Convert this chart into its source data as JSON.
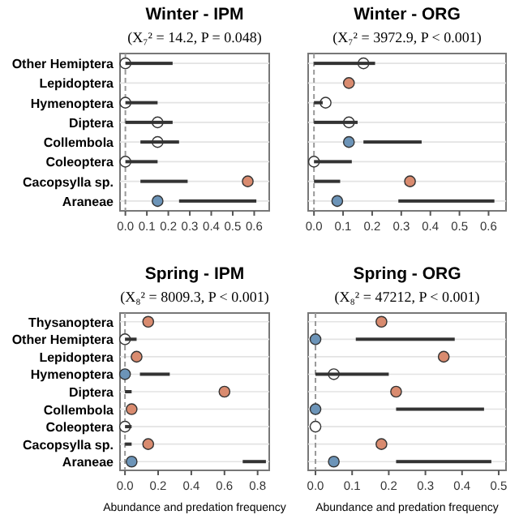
{
  "chart_data": [
    {
      "type": "bar",
      "orientation": "horizontal",
      "title": "Winter - IPM",
      "subtitle": "(X₇² = 14.2, P = 0.048)",
      "categories": [
        "Other Hemiptera",
        "Lepidoptera",
        "Hymenoptera",
        "Diptera",
        "Collembola",
        "Coleoptera",
        "Cacopsylla sp.",
        "Araneae"
      ],
      "xlim": [
        -0.025,
        0.67
      ],
      "xticks": [
        {
          "value": 0,
          "label": "0.0"
        },
        0.1,
        0.2,
        0.3,
        0.4,
        0.5,
        0.6
      ],
      "grid": "y",
      "ref_lines": [
        {
          "axis": "x",
          "value": 0,
          "line_style": "dashed",
          "color": "#999999"
        }
      ],
      "series": [
        {
          "color": "#333333",
          "base": [
            0,
            null,
            0,
            0,
            0.07,
            0,
            0.07,
            0.25
          ],
          "values": [
            0.22,
            null,
            0.15,
            0.22,
            0.18,
            0.15,
            0.22,
            0.36
          ]
        },
        {
          "type": "scatter",
          "marker": "circle",
          "colors": [
            "#ffffff",
            null,
            "#ffffff",
            "#ffffff",
            "#ffffff",
            "#ffffff",
            "#d98b6f",
            "#6c94b8"
          ],
          "values": [
            0,
            null,
            0,
            0.15,
            0.15,
            0,
            0.57,
            0.15
          ]
        }
      ]
    },
    {
      "type": "bar",
      "orientation": "horizontal",
      "title": "Winter - ORG",
      "subtitle": "(X₇² = 3972.9, P < 0.001)",
      "categories": [
        null,
        null,
        null,
        null,
        null,
        null,
        null,
        null
      ],
      "tick_labels": "x",
      "xlim": [
        -0.02,
        0.66
      ],
      "xticks": [
        {
          "value": 0,
          "label": "0.0"
        },
        0.1,
        0.2,
        0.3,
        0.4,
        0.5,
        0.6
      ],
      "grid": "y",
      "ref_lines": [
        {
          "axis": "x",
          "value": 0,
          "line_style": "dashed",
          "color": "#999999"
        }
      ],
      "series": [
        {
          "color": "#333333",
          "base": [
            0,
            null,
            0,
            0,
            0.17,
            0,
            0,
            0.29
          ],
          "values": [
            0.21,
            null,
            0.03,
            0.15,
            0.2,
            0.13,
            0.09,
            0.33
          ]
        },
        {
          "type": "scatter",
          "marker": "circle",
          "colors": [
            "#ffffff",
            "#d98b6f",
            "#ffffff",
            "#ffffff",
            "#6c94b8",
            "#ffffff",
            "#d98b6f",
            "#6c94b8"
          ],
          "values": [
            0.17,
            0.12,
            0.04,
            0.12,
            0.12,
            0,
            0.33,
            0.08
          ]
        }
      ]
    },
    {
      "type": "bar",
      "orientation": "horizontal",
      "title": "Spring - IPM",
      "subtitle": "(X₈² = 8009.3, P < 0.001)",
      "xlabel": "Abundance and predation frequency",
      "categories": [
        "Thysanoptera",
        "Other Hemiptera",
        "Lepidoptera",
        "Hymenoptera",
        "Diptera",
        "Collembola",
        "Coleoptera",
        "Cacopsylla sp.",
        "Araneae"
      ],
      "xlim": [
        -0.03,
        0.87
      ],
      "xticks": [
        {
          "value": 0,
          "label": "0.0"
        },
        {
          "value": 0.2,
          "label": "0.2"
        },
        {
          "value": 0.4,
          "label": "0.4"
        },
        {
          "value": 0.6,
          "label": "0.6"
        },
        {
          "value": 0.8,
          "label": "0.8"
        }
      ],
      "grid": "y",
      "ref_lines": [
        {
          "axis": "x",
          "value": 0,
          "line_style": "dashed",
          "color": "#999999"
        }
      ],
      "series": [
        {
          "color": "#333333",
          "base": [
            null,
            0,
            null,
            0.09,
            0,
            null,
            0,
            0,
            0.71
          ],
          "values": [
            null,
            0.07,
            null,
            0.18,
            0.04,
            null,
            0.04,
            0.04,
            0.14
          ]
        },
        {
          "type": "scatter",
          "marker": "circle",
          "colors": [
            "#d98b6f",
            "#ffffff",
            "#d98b6f",
            "#6c94b8",
            "#d98b6f",
            "#d98b6f",
            "#ffffff",
            "#d98b6f",
            "#6c94b8"
          ],
          "values": [
            0.14,
            0,
            0.07,
            0,
            0.6,
            0.04,
            0,
            0.14,
            0.04
          ]
        }
      ]
    },
    {
      "type": "bar",
      "orientation": "horizontal",
      "title": "Spring - ORG",
      "subtitle": "(X₈² = 47212, P < 0.001)",
      "xlabel": "Abundance and predation frequency",
      "categories": [
        null,
        null,
        null,
        null,
        null,
        null,
        null,
        null,
        null
      ],
      "tick_labels": "x",
      "xlim": [
        -0.02,
        0.52
      ],
      "xticks": [
        {
          "value": 0,
          "label": "0.0"
        },
        0.1,
        0.2,
        0.3,
        0.4,
        0.5
      ],
      "grid": "y",
      "ref_lines": [
        {
          "axis": "x",
          "value": 0,
          "line_style": "dashed",
          "color": "#999999"
        }
      ],
      "series": [
        {
          "color": "#333333",
          "base": [
            null,
            0.11,
            null,
            0,
            null,
            0.22,
            null,
            null,
            0.22
          ],
          "values": [
            null,
            0.27,
            null,
            0.2,
            null,
            0.24,
            null,
            null,
            0.26
          ]
        },
        {
          "type": "scatter",
          "marker": "circle",
          "colors": [
            "#d98b6f",
            "#6c94b8",
            "#d98b6f",
            "#ffffff",
            "#d98b6f",
            "#6c94b8",
            "#ffffff",
            "#d98b6f",
            "#6c94b8"
          ],
          "values": [
            0.18,
            0,
            0.35,
            0.05,
            0.22,
            0,
            0,
            0.18,
            0.05
          ]
        }
      ]
    }
  ]
}
